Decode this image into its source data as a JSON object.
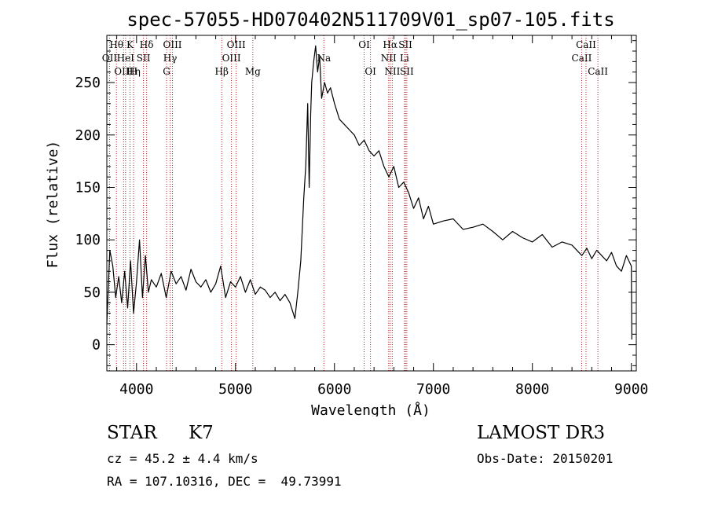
{
  "chart_data": {
    "type": "line",
    "title": "spec-57055-HD070402N511709V01_sp07-105.fits",
    "xlabel": "Wavelength (Å)",
    "ylabel": "Flux (relative)",
    "xlim": [
      3700,
      9050
    ],
    "ylim": [
      -25,
      295
    ],
    "x_ticks": [
      4000,
      5000,
      6000,
      7000,
      8000,
      9000
    ],
    "y_ticks": [
      0,
      50,
      100,
      150,
      200,
      250
    ],
    "grid": false,
    "line_color": "#000000",
    "marker_color": "#b22222",
    "series": [
      {
        "x": [
          3700,
          3730,
          3760,
          3790,
          3820,
          3850,
          3880,
          3910,
          3940,
          3970,
          4000,
          4030,
          4060,
          4090,
          4120,
          4150,
          4200,
          4250,
          4300,
          4350,
          4400,
          4450,
          4500,
          4550,
          4600,
          4650,
          4700,
          4750,
          4800,
          4850,
          4900,
          4950,
          5000,
          5050,
          5100,
          5150,
          5200,
          5250,
          5300,
          5350,
          5400,
          5450,
          5500,
          5550,
          5600,
          5630,
          5660,
          5690,
          5710,
          5730,
          5745,
          5760,
          5770,
          5790,
          5810,
          5830,
          5850,
          5870,
          5900,
          5930,
          5960,
          6000,
          6050,
          6100,
          6150,
          6200,
          6250,
          6300,
          6350,
          6400,
          6450,
          6500,
          6550,
          6600,
          6650,
          6700,
          6750,
          6800,
          6850,
          6900,
          6950,
          7000,
          7100,
          7200,
          7300,
          7400,
          7500,
          7600,
          7700,
          7800,
          7900,
          8000,
          8100,
          8200,
          8300,
          8400,
          8500,
          8550,
          8600,
          8650,
          8700,
          8750,
          8800,
          8850,
          8900,
          8950,
          9000,
          9005
        ],
        "y": [
          20,
          90,
          75,
          45,
          65,
          40,
          70,
          35,
          80,
          30,
          60,
          100,
          45,
          85,
          50,
          62,
          55,
          68,
          45,
          70,
          58,
          65,
          52,
          72,
          60,
          55,
          62,
          50,
          58,
          75,
          45,
          60,
          55,
          65,
          50,
          62,
          48,
          55,
          52,
          45,
          50,
          42,
          48,
          40,
          25,
          50,
          80,
          140,
          170,
          230,
          150,
          220,
          250,
          270,
          285,
          260,
          275,
          235,
          250,
          240,
          245,
          230,
          215,
          210,
          205,
          200,
          190,
          195,
          185,
          180,
          185,
          170,
          160,
          170,
          150,
          155,
          145,
          130,
          140,
          120,
          132,
          115,
          118,
          120,
          110,
          112,
          115,
          108,
          100,
          108,
          102,
          98,
          105,
          93,
          98,
          95,
          85,
          92,
          82,
          90,
          85,
          80,
          88,
          75,
          70,
          85,
          75,
          5
        ]
      }
    ],
    "line_markers": [
      {
        "x": 3797,
        "label": "Hθ",
        "row": 0
      },
      {
        "x": 3727,
        "label": "OII",
        "row": 1
      },
      {
        "x": 3869,
        "label": "OIII",
        "row": 2
      },
      {
        "x": 3889,
        "label": "HeI",
        "row": 1
      },
      {
        "x": 3934,
        "label": "K",
        "row": 0
      },
      {
        "x": 3970,
        "label": "Hη",
        "row": 2
      },
      {
        "x": 3970,
        "label": "H",
        "row": 2
      },
      {
        "x": 4070,
        "label": "SII",
        "row": 1
      },
      {
        "x": 4102,
        "label": "Hδ",
        "row": 0
      },
      {
        "x": 4304,
        "label": "G",
        "row": 2
      },
      {
        "x": 4340,
        "label": "Hγ",
        "row": 1
      },
      {
        "x": 4363,
        "label": "OIII",
        "row": 0
      },
      {
        "x": 4861,
        "label": "Hβ",
        "row": 2
      },
      {
        "x": 4959,
        "label": "OIII",
        "row": 1
      },
      {
        "x": 5007,
        "label": "OIII",
        "row": 0
      },
      {
        "x": 5175,
        "label": "Mg",
        "row": 2
      },
      {
        "x": 5893,
        "label": "Na",
        "row": 1
      },
      {
        "x": 6300,
        "label": "OI",
        "row": 0
      },
      {
        "x": 6364,
        "label": "OI",
        "row": 2
      },
      {
        "x": 6548,
        "label": "NII",
        "row": 1
      },
      {
        "x": 6563,
        "label": "Hα",
        "row": 0
      },
      {
        "x": 6584,
        "label": "NII",
        "row": 2
      },
      {
        "x": 6708,
        "label": "Li",
        "row": 1
      },
      {
        "x": 6717,
        "label": "SII",
        "row": 0
      },
      {
        "x": 6731,
        "label": "SII",
        "row": 2
      },
      {
        "x": 8498,
        "label": "CaII",
        "row": 1
      },
      {
        "x": 8542,
        "label": "CaII",
        "row": 0
      },
      {
        "x": 8662,
        "label": "CaII",
        "row": 2
      }
    ]
  },
  "info": {
    "object_type": "STAR",
    "subclass": "K7",
    "survey": "LAMOST DR3",
    "velocity": "cz = 45.2 ± 4.4 km/s",
    "obs_date": "Obs-Date: 20150201",
    "coords": "RA = 107.10316, DEC =  49.73991"
  }
}
